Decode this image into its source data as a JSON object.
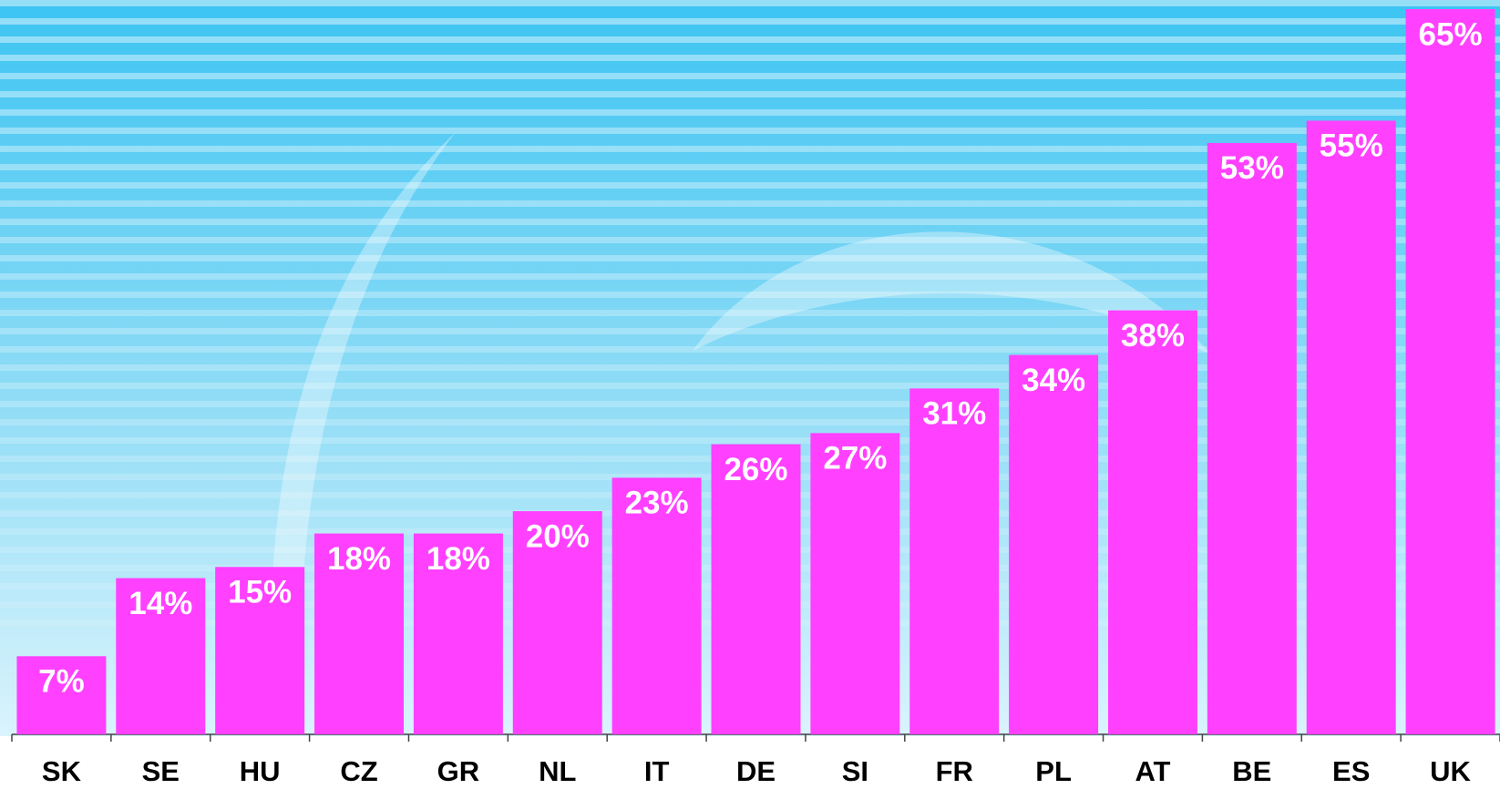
{
  "chart_data": {
    "type": "bar",
    "categories": [
      "SK",
      "SE",
      "HU",
      "CZ",
      "GR",
      "NL",
      "IT",
      "DE",
      "SI",
      "FR",
      "PL",
      "AT",
      "BE",
      "ES",
      "UK"
    ],
    "values": [
      7,
      14,
      15,
      18,
      18,
      20,
      23,
      26,
      27,
      31,
      34,
      38,
      53,
      55,
      65
    ],
    "value_labels": [
      "7%",
      "14%",
      "15%",
      "18%",
      "18%",
      "20%",
      "23%",
      "26%",
      "27%",
      "31%",
      "34%",
      "38%",
      "53%",
      "55%",
      "65%"
    ],
    "color": "#ff40ff",
    "ylim": [
      0,
      65
    ]
  }
}
